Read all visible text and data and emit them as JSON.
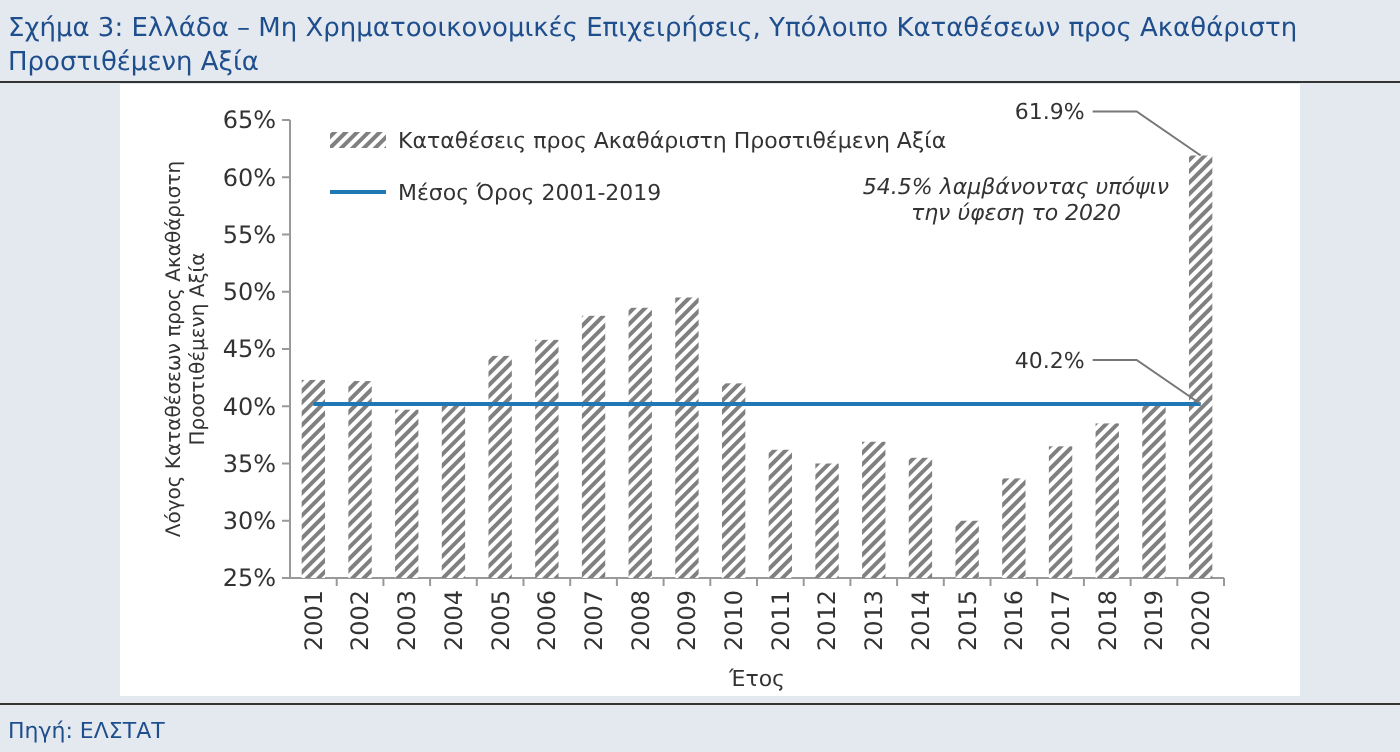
{
  "chart_data": {
    "type": "bar",
    "title": "Σχήμα 3: Ελλάδα – Μη Χρηματοοικονομικές Επιχειρήσεις, Υπόλοιπο Καταθέσεων προς Ακαθάριστη Προστιθέμενη Αξία",
    "xlabel": "Έτος",
    "ylabel": "Λόγος Καταθέσεων προς Ακαθάριστη Προστιθέμενη Αξία",
    "categories": [
      "2001",
      "2002",
      "2003",
      "2004",
      "2005",
      "2006",
      "2007",
      "2008",
      "2009",
      "2010",
      "2011",
      "2012",
      "2013",
      "2014",
      "2015",
      "2016",
      "2017",
      "2018",
      "2019",
      "2020"
    ],
    "series": [
      {
        "name": "Καταθέσεις προς Ακαθάριστη Προστιθέμενη Αξία",
        "color": "#808080",
        "values": [
          42.3,
          42.2,
          39.7,
          40.1,
          44.4,
          45.8,
          47.9,
          48.6,
          49.5,
          42.0,
          36.2,
          35.0,
          36.9,
          35.5,
          30.0,
          33.7,
          36.5,
          38.5,
          40.3,
          61.9
        ]
      },
      {
        "name": "Μέσος Όρος 2001-2019",
        "type": "line",
        "color": "#1f77b4",
        "values": [
          40.2,
          40.2,
          40.2,
          40.2,
          40.2,
          40.2,
          40.2,
          40.2,
          40.2,
          40.2,
          40.2,
          40.2,
          40.2,
          40.2,
          40.2,
          40.2,
          40.2,
          40.2,
          40.2,
          40.2
        ]
      }
    ],
    "ylim": [
      25,
      65
    ],
    "yticks": [
      {
        "value": 25,
        "label": "25%"
      },
      {
        "value": 30,
        "label": "30%"
      },
      {
        "value": 35,
        "label": "35%"
      },
      {
        "value": 40,
        "label": "40%"
      },
      {
        "value": 45,
        "label": "45%"
      },
      {
        "value": 50,
        "label": "50%"
      },
      {
        "value": 55,
        "label": "55%"
      },
      {
        "value": 60,
        "label": "60%"
      },
      {
        "value": 65,
        "label": "65%"
      }
    ],
    "legend": "top left",
    "annotations": [
      {
        "text": "61.9%",
        "x": "2020",
        "y": 61.9
      },
      {
        "text": "40.2%",
        "x": "2020",
        "y": 40.2
      },
      "54.5% λαμβάνοντας υπόψιν την ύφεση το 2020",
      "Πηγή: ΕΛΣΤΑΤ"
    ]
  }
}
